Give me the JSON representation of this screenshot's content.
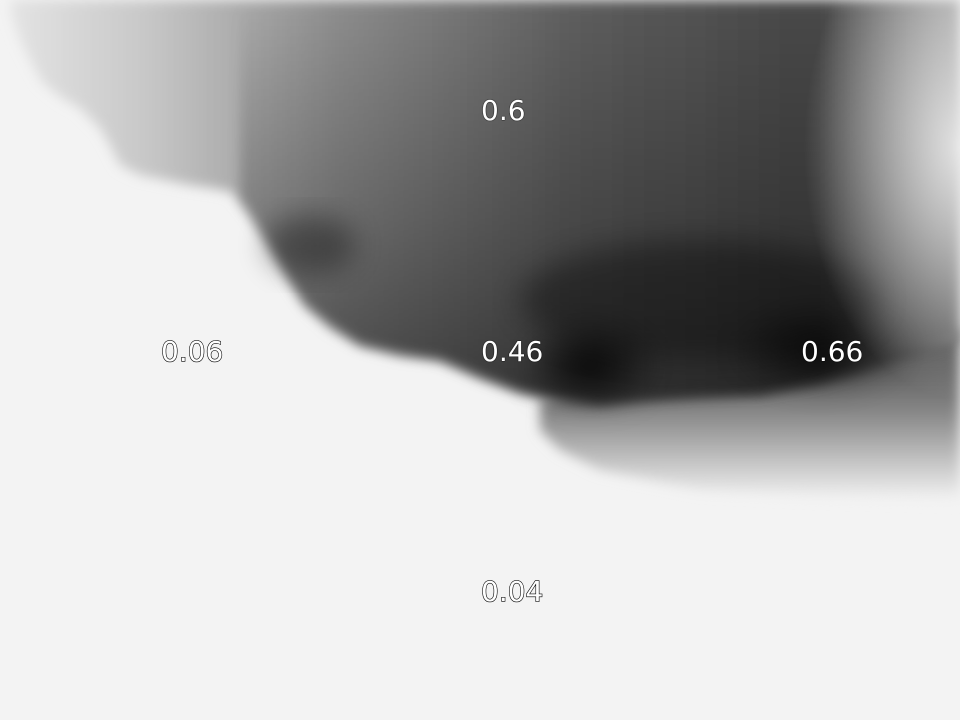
{
  "colors": {
    "background": "#f3f3f3",
    "darkest": "#050505"
  },
  "labels": {
    "top": "0.6",
    "left": "0.06",
    "center": "0.46",
    "right": "0.66",
    "bottom": "0.04"
  }
}
